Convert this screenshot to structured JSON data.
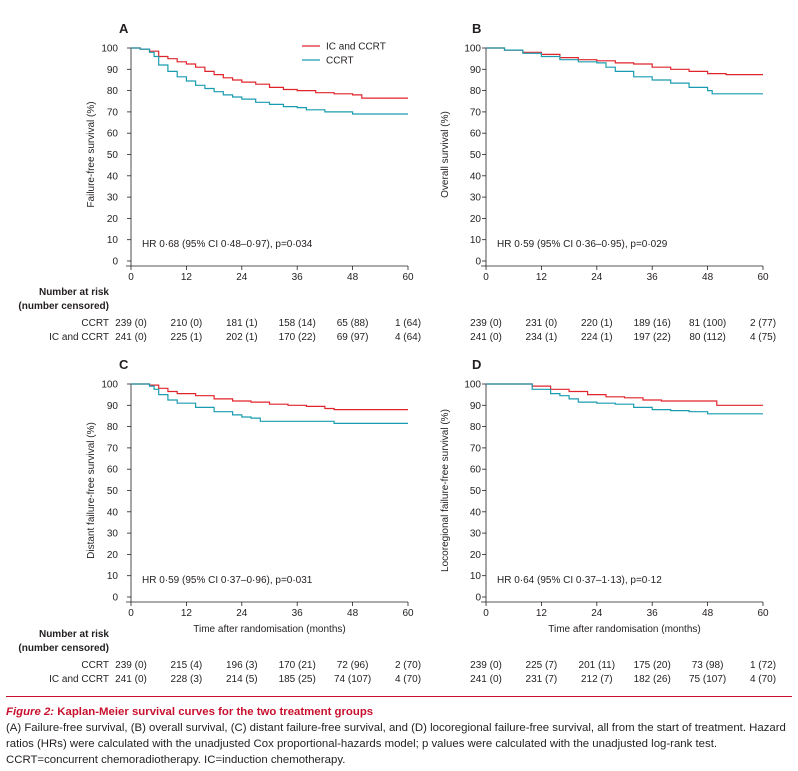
{
  "colors": {
    "ic_ccrt": "#e0242b",
    "ccrt": "#1a9cb0",
    "text": "#231f20",
    "caption_accent": "#c8102e"
  },
  "legend": {
    "ic_ccrt": "IC and CCRT",
    "ccrt": "CCRT"
  },
  "risk_labels": {
    "number_at_risk": "Number at risk",
    "number_censored": "(number censored)",
    "ccrt": "CCRT",
    "ic_ccrt": "IC and CCRT"
  },
  "caption": {
    "figure_label": "Figure 2:",
    "title": "Kaplan-Meier survival curves for the two treatment groups",
    "text": "(A) Failure-free survival, (B) overall survival, (C) distant failure-free survival, and (D) locoregional failure-free survival, all from the start of treatment. Hazard ratios (HRs) were calculated with the unadjusted Cox proportional-hazards model; p values were calculated with the unadjusted log-rank test. CCRT=concurrent chemoradiotherapy. IC=induction chemotherapy."
  },
  "chart_data": [
    {
      "panel": "A",
      "type": "line",
      "ylabel": "Failure-free survival (%)",
      "xlabel": "",
      "xlim": [
        0,
        60
      ],
      "ylim": [
        0,
        100
      ],
      "x_ticks": [
        "0",
        "12",
        "24",
        "36",
        "48",
        "60"
      ],
      "y_ticks": [
        "0",
        "10",
        "20",
        "30",
        "40",
        "50",
        "60",
        "70",
        "80",
        "90",
        "100"
      ],
      "hr_text": "HR 0·68 (95% CI 0·48–0·97), p=0·034",
      "series": [
        {
          "name": "IC and CCRT",
          "x": [
            0,
            2,
            4,
            6,
            8,
            10,
            12,
            14,
            16,
            18,
            20,
            22,
            24,
            27,
            30,
            33,
            36,
            40,
            44,
            48,
            50,
            54,
            60
          ],
          "values": [
            100,
            99.5,
            98.5,
            96,
            95,
            93.5,
            92.5,
            91,
            89,
            87.5,
            86,
            85,
            84,
            83,
            81.5,
            80.5,
            80,
            79,
            78.5,
            78,
            76.5,
            76.5,
            76.5
          ]
        },
        {
          "name": "CCRT",
          "x": [
            0,
            2,
            4,
            5,
            6,
            8,
            10,
            12,
            14,
            16,
            18,
            20,
            22,
            24,
            27,
            30,
            33,
            36,
            38,
            42,
            48,
            54,
            60
          ],
          "values": [
            100,
            99.5,
            98,
            96,
            92,
            89,
            86.5,
            84.5,
            82.5,
            81,
            79.5,
            78,
            77,
            76,
            74.5,
            73.5,
            72.5,
            72,
            71,
            70,
            69,
            69,
            69
          ]
        }
      ],
      "risk_table": {
        "ccrt": [
          "239 (0)",
          "210 (0)",
          "181 (1)",
          "158 (14)",
          "65 (88)",
          "1 (64)"
        ],
        "ic_ccrt": [
          "241 (0)",
          "225 (1)",
          "202 (1)",
          "170 (22)",
          "69 (97)",
          "4 (64)"
        ]
      }
    },
    {
      "panel": "B",
      "type": "line",
      "ylabel": "Overall survival (%)",
      "xlabel": "",
      "xlim": [
        0,
        60
      ],
      "ylim": [
        0,
        100
      ],
      "x_ticks": [
        "0",
        "12",
        "24",
        "36",
        "48",
        "60"
      ],
      "y_ticks": [
        "0",
        "10",
        "20",
        "30",
        "40",
        "50",
        "60",
        "70",
        "80",
        "90",
        "100"
      ],
      "hr_text": "HR 0·59 (95% CI 0·36–0·95), p=0·029",
      "series": [
        {
          "name": "IC and CCRT",
          "x": [
            0,
            4,
            8,
            12,
            16,
            20,
            24,
            28,
            32,
            36,
            40,
            44,
            48,
            52,
            56,
            60
          ],
          "values": [
            100,
            99,
            98,
            97,
            95.5,
            94.5,
            94,
            93,
            92.5,
            91,
            90,
            89,
            88,
            87.5,
            87.5,
            87.5
          ]
        },
        {
          "name": "CCRT",
          "x": [
            0,
            4,
            8,
            12,
            16,
            20,
            24,
            26,
            28,
            32,
            36,
            40,
            44,
            48,
            49,
            54,
            60
          ],
          "values": [
            100,
            99,
            97.5,
            96,
            94.5,
            93.5,
            93,
            91,
            89,
            86.5,
            85,
            83.5,
            81.5,
            80,
            78.5,
            78.5,
            78.5
          ]
        }
      ],
      "risk_table": {
        "ccrt": [
          "239 (0)",
          "231 (0)",
          "220 (1)",
          "189 (16)",
          "81 (100)",
          "2 (77)"
        ],
        "ic_ccrt": [
          "241 (0)",
          "234 (1)",
          "224 (1)",
          "197 (22)",
          "80 (112)",
          "4 (75)"
        ]
      }
    },
    {
      "panel": "C",
      "type": "line",
      "ylabel": "Distant failure-free survival (%)",
      "xlabel": "Time after randomisation (months)",
      "xlim": [
        0,
        60
      ],
      "ylim": [
        0,
        100
      ],
      "x_ticks": [
        "0",
        "12",
        "24",
        "36",
        "48",
        "60"
      ],
      "y_ticks": [
        "0",
        "10",
        "20",
        "30",
        "40",
        "50",
        "60",
        "70",
        "80",
        "90",
        "100"
      ],
      "hr_text": "HR 0·59 (95% CI 0·37–0·96), p=0·031",
      "series": [
        {
          "name": "IC and CCRT",
          "x": [
            0,
            4,
            6,
            8,
            10,
            14,
            18,
            22,
            26,
            30,
            34,
            38,
            42,
            44,
            48,
            52,
            60
          ],
          "values": [
            100,
            99.5,
            98,
            96.5,
            95.5,
            94.5,
            93,
            92,
            91.5,
            90.5,
            90,
            89.5,
            88.5,
            88,
            88,
            88,
            88
          ]
        },
        {
          "name": "CCRT",
          "x": [
            0,
            4,
            5,
            6,
            8,
            10,
            14,
            18,
            22,
            24,
            26,
            28,
            30,
            34,
            38,
            42,
            44,
            48,
            52,
            60
          ],
          "values": [
            100,
            99,
            97.5,
            95,
            92.5,
            91,
            89,
            87,
            85.5,
            84.5,
            84,
            82.5,
            82.5,
            82.5,
            82.5,
            82.5,
            81.5,
            81.5,
            81.5,
            81.5
          ]
        }
      ],
      "risk_table": {
        "ccrt": [
          "239 (0)",
          "215 (4)",
          "196 (3)",
          "170 (21)",
          "72 (96)",
          "2 (70)"
        ],
        "ic_ccrt": [
          "241 (0)",
          "228 (3)",
          "214 (5)",
          "185 (25)",
          "74 (107)",
          "4 (70)"
        ]
      }
    },
    {
      "panel": "D",
      "type": "line",
      "ylabel": "Locoregional failure-free survival (%)",
      "xlabel": "Time after randomisation (months)",
      "xlim": [
        0,
        60
      ],
      "ylim": [
        0,
        100
      ],
      "x_ticks": [
        "0",
        "12",
        "24",
        "36",
        "48",
        "60"
      ],
      "y_ticks": [
        "0",
        "10",
        "20",
        "30",
        "40",
        "50",
        "60",
        "70",
        "80",
        "90",
        "100"
      ],
      "hr_text": "HR 0·64 (95% CI 0·37–1·13), p=0·12",
      "series": [
        {
          "name": "IC and CCRT",
          "x": [
            0,
            6,
            10,
            14,
            18,
            22,
            26,
            30,
            34,
            38,
            42,
            46,
            50,
            54,
            60
          ],
          "values": [
            100,
            100,
            99,
            97.5,
            96.5,
            95,
            94,
            93.5,
            92.5,
            92,
            92,
            92,
            90,
            90,
            90
          ]
        },
        {
          "name": "CCRT",
          "x": [
            0,
            6,
            10,
            14,
            16,
            18,
            20,
            24,
            28,
            32,
            36,
            40,
            44,
            48,
            52,
            60
          ],
          "values": [
            100,
            100,
            97.5,
            95.5,
            94.5,
            93,
            91.5,
            91,
            90.5,
            89,
            88,
            87.5,
            87,
            86,
            86,
            86
          ]
        }
      ],
      "risk_table": {
        "ccrt": [
          "239 (0)",
          "225 (7)",
          "201 (11)",
          "175 (20)",
          "73 (98)",
          "1 (72)"
        ],
        "ic_ccrt": [
          "241 (0)",
          "231 (7)",
          "212 (7)",
          "182 (26)",
          "75 (107)",
          "4 (70)"
        ]
      }
    }
  ]
}
